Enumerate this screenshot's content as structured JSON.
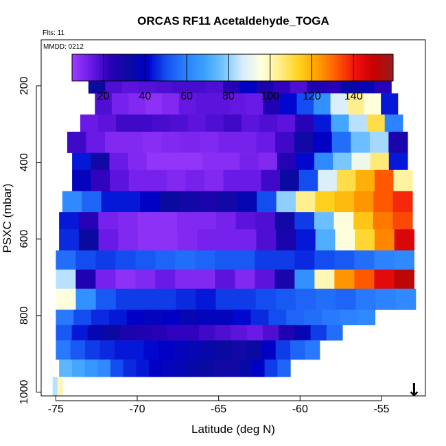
{
  "chart_data": {
    "type": "heatmap",
    "title": "ORCAS RF11 Acetaldehyde_TOGA",
    "flights_label": "Flts: 11",
    "date_label": "MMDD: 0212",
    "xlabel": "Latitude (deg N)",
    "ylabel": "PSXC (mbar)",
    "xlim": [
      -75.9,
      -52.3
    ],
    "ylim": [
      1010,
      80
    ],
    "x_ticks": [
      -75,
      -70,
      -65,
      -60,
      -55
    ],
    "y_ticks": [
      200,
      400,
      600,
      800,
      1000
    ],
    "colorbar": {
      "range": [
        5,
        159
      ],
      "ticks": [
        20,
        40,
        60,
        80,
        100,
        120,
        140
      ],
      "colors": [
        "#9e3cff",
        "#6a1ae6",
        "#2a00b8",
        "#0a0aa0",
        "#0000cc",
        "#1450f0",
        "#2c80ff",
        "#3aa0ff",
        "#74c4ff",
        "#d4ecff",
        "#ffffe0",
        "#ffee88",
        "#ffd21e",
        "#ffa000",
        "#ff5a00",
        "#f01010",
        "#c80000",
        "#961e1e"
      ]
    },
    "bands": [
      {
        "p0": 160,
        "p1": 220,
        "lat_start": -73.0,
        "lat_end": -54.4,
        "values": [
          32,
          18,
          16,
          17,
          18,
          19,
          19,
          18,
          24,
          40,
          28,
          22,
          18,
          26,
          24,
          34,
          36,
          24
        ]
      },
      {
        "p0": 220,
        "p1": 275,
        "lat_start": -72.6,
        "lat_end": -54.0,
        "values": [
          18,
          12,
          10,
          8,
          10,
          15,
          16,
          16,
          15,
          14,
          26,
          42,
          50,
          64,
          88,
          104,
          96,
          44
        ]
      },
      {
        "p0": 275,
        "p1": 320,
        "lat_start": -73.5,
        "lat_end": -53.7,
        "values": [
          14,
          16,
          20,
          20,
          19,
          18,
          16,
          18,
          20,
          16,
          18,
          16,
          24,
          44,
          70,
          84,
          110,
          60
        ]
      },
      {
        "p0": 320,
        "p1": 375,
        "lat_start": -74.3,
        "lat_end": -53.4,
        "values": [
          20,
          14,
          10,
          10,
          9,
          10,
          11,
          10,
          12,
          12,
          14,
          20,
          30,
          40,
          56,
          76,
          82,
          28
        ]
      },
      {
        "p0": 375,
        "p1": 420,
        "lat_start": -74.0,
        "lat_end": -53.4,
        "values": [
          44,
          30,
          14,
          10,
          7,
          7,
          7,
          9,
          9,
          12,
          10,
          24,
          42,
          62,
          78,
          92,
          106,
          44
        ]
      },
      {
        "p0": 420,
        "p1": 475,
        "lat_start": -74.0,
        "lat_end": -53.1,
        "values": [
          38,
          22,
          16,
          12,
          12,
          10,
          12,
          10,
          14,
          14,
          20,
          32,
          50,
          88,
          110,
          120,
          132,
          102
        ]
      },
      {
        "p0": 475,
        "p1": 530,
        "lat_start": -74.6,
        "lat_end": -53.1,
        "values": [
          62,
          54,
          44,
          44,
          40,
          32,
          30,
          28,
          30,
          36,
          50,
          80,
          104,
          114,
          118,
          124,
          132,
          138
        ]
      },
      {
        "p0": 530,
        "p1": 575,
        "lat_start": -74.8,
        "lat_end": -53.1,
        "values": [
          44,
          24,
          12,
          10,
          8,
          8,
          10,
          10,
          12,
          16,
          18,
          30,
          48,
          76,
          96,
          116,
          128,
          134
        ]
      },
      {
        "p0": 575,
        "p1": 630,
        "lat_start": -74.8,
        "lat_end": -53.0,
        "values": [
          46,
          32,
          14,
          10,
          8,
          8,
          10,
          12,
          12,
          12,
          18,
          28,
          44,
          72,
          96,
          112,
          126,
          146
        ]
      },
      {
        "p0": 630,
        "p1": 680,
        "lat_start": -75.0,
        "lat_end": -53.0,
        "values": [
          56,
          50,
          48,
          50,
          52,
          54,
          56,
          54,
          52,
          52,
          48,
          48,
          46,
          50,
          52,
          56,
          60,
          62
        ]
      },
      {
        "p0": 680,
        "p1": 730,
        "lat_start": -75.0,
        "lat_end": -53.0,
        "values": [
          84,
          26,
          12,
          8,
          10,
          14,
          10,
          10,
          16,
          10,
          16,
          28,
          64,
          100,
          124,
          132,
          144,
          152
        ]
      },
      {
        "p0": 730,
        "p1": 785,
        "lat_start": -75.0,
        "lat_end": -52.9,
        "values": [
          96,
          64,
          52,
          48,
          48,
          48,
          46,
          44,
          48,
          48,
          50,
          52,
          54,
          56,
          54,
          58,
          60,
          62
        ]
      },
      {
        "p0": 785,
        "p1": 825,
        "lat_start": -75.0,
        "lat_end": -55.4,
        "values": [
          58,
          50,
          46,
          44,
          40,
          38,
          40,
          36,
          38,
          38,
          42,
          46,
          50,
          54,
          56,
          58,
          60,
          62
        ]
      },
      {
        "p0": 825,
        "p1": 865,
        "lat_start": -75.0,
        "lat_end": -57.4,
        "values": [
          52,
          44,
          36,
          32,
          28,
          26,
          24,
          22,
          22,
          20,
          18,
          16,
          14,
          18,
          26,
          36,
          48,
          56
        ]
      },
      {
        "p0": 865,
        "p1": 915,
        "lat_start": -75.0,
        "lat_end": -58.8,
        "values": [
          58,
          52,
          48,
          46,
          44,
          44,
          42,
          40,
          38,
          36,
          34,
          32,
          30,
          32,
          40,
          48,
          54,
          58
        ]
      },
      {
        "p0": 915,
        "p1": 960,
        "lat_start": -74.8,
        "lat_end": -60.6,
        "values": [
          74,
          70,
          66,
          62,
          50,
          46,
          44,
          40,
          38,
          36,
          34,
          32,
          30,
          30,
          34,
          40,
          48,
          54
        ]
      },
      {
        "p0": 960,
        "p1": 1010,
        "lat_start": -75.2,
        "lat_end": -74.6,
        "values": [
          84,
          100
        ]
      }
    ],
    "annotation": {
      "symbol": "↓",
      "latitude": -53.0,
      "pressure": 1010
    }
  }
}
